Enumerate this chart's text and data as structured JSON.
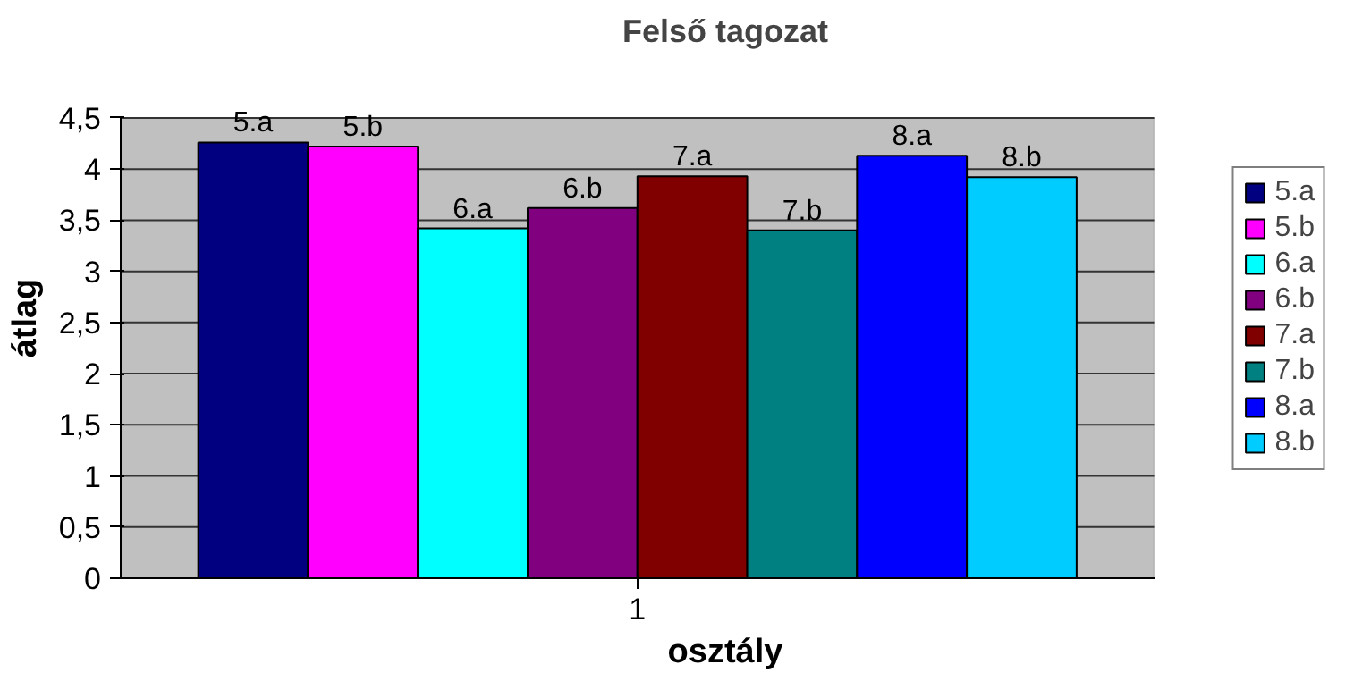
{
  "chart_data": {
    "type": "bar",
    "title": "Felső tagozat",
    "xlabel": "osztály",
    "ylabel": "átlag",
    "categories": [
      "1"
    ],
    "series": [
      {
        "name": "5.a",
        "color": "#000080",
        "values": [
          4.26
        ]
      },
      {
        "name": "5.b",
        "color": "#ff00ff",
        "values": [
          4.22
        ]
      },
      {
        "name": "6.a",
        "color": "#00ffff",
        "values": [
          3.42
        ]
      },
      {
        "name": "6.b",
        "color": "#800080",
        "values": [
          3.62
        ]
      },
      {
        "name": "7.a",
        "color": "#800000",
        "values": [
          3.93
        ]
      },
      {
        "name": "7.b",
        "color": "#008080",
        "values": [
          3.4
        ]
      },
      {
        "name": "8.a",
        "color": "#0000ff",
        "values": [
          4.13
        ]
      },
      {
        "name": "8.b",
        "color": "#00ccff",
        "values": [
          3.92
        ]
      }
    ],
    "ylim": [
      0,
      4.5
    ],
    "yticks": [
      0,
      {
        "value": 0.5,
        "label": "0,5"
      },
      1,
      {
        "value": 1.5,
        "label": "1,5"
      },
      2,
      {
        "value": 2.5,
        "label": "2,5"
      },
      3,
      {
        "value": 3.5,
        "label": "3,5"
      },
      4,
      {
        "value": 4.5,
        "label": "4,5"
      }
    ],
    "grid": "y",
    "legend": "right"
  }
}
